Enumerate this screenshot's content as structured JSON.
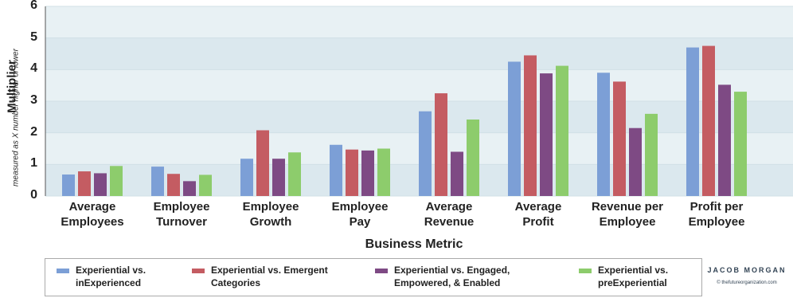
{
  "chart_data": {
    "type": "bar",
    "y_label": "Multiplier",
    "y_sublabel": "measured as X number higher or lower",
    "x_label": "Business Metric",
    "categories": [
      "Average\nEmployees",
      "Employee\nTurnover",
      "Employee\nGrowth",
      "Employee\nPay",
      "Average\nRevenue",
      "Average\nProfit",
      "Revenue per\nEmployee",
      "Profit per\nEmployee"
    ],
    "series": [
      {
        "name": "Experiential vs.\ninExperienced",
        "color": "#7c9fd6",
        "values": [
          0.68,
          0.93,
          1.18,
          1.62,
          2.68,
          4.25,
          3.9,
          4.7
        ]
      },
      {
        "name": "Experiential vs. Emergent\nCategories",
        "color": "#c45c62",
        "values": [
          0.78,
          0.7,
          2.08,
          1.47,
          3.25,
          4.45,
          3.62,
          4.75
        ]
      },
      {
        "name": "Experiential vs. Engaged,\nEmpowered, & Enabled",
        "color": "#7e4a84",
        "values": [
          0.72,
          0.47,
          1.18,
          1.44,
          1.4,
          3.88,
          2.15,
          3.52
        ]
      },
      {
        "name": "Experiential vs.\npreExperiential",
        "color": "#8dcc6c",
        "values": [
          0.95,
          0.67,
          1.38,
          1.5,
          2.42,
          4.12,
          2.6,
          3.3
        ]
      }
    ],
    "ylim": [
      0,
      6
    ],
    "yticks": [
      0,
      1,
      2,
      3,
      4,
      5,
      6
    ],
    "grid": true
  },
  "logo": {
    "name": "JACOB MORGAN",
    "url": "© thefutureorganization.com"
  }
}
